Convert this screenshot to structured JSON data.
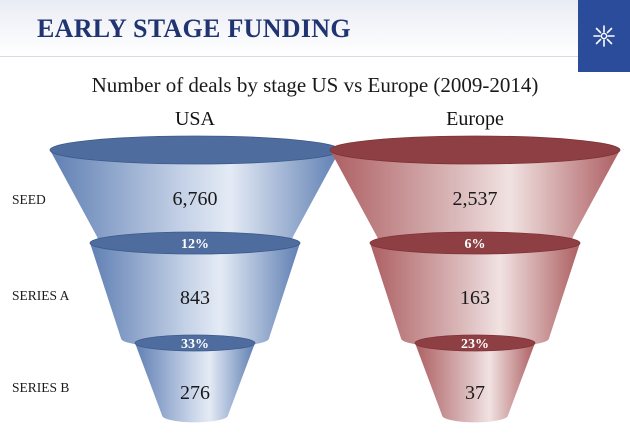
{
  "header": {
    "title": "EARLY STAGE FUNDING"
  },
  "logo": {
    "icon": "snowflake-star-icon",
    "bg_color": "#2b4c9b"
  },
  "chart_data": {
    "type": "funnel",
    "title": "Number of deals by stage US vs Europe (2009-2014)",
    "stages": [
      "SEED",
      "SERIES A",
      "SERIES B"
    ],
    "series": [
      {
        "name": "USA",
        "color": "#5576a8",
        "values": [
          6760,
          843,
          276
        ],
        "value_labels": [
          "6,760",
          "843",
          "276"
        ],
        "conversion_labels": [
          "12%",
          "33%"
        ]
      },
      {
        "name": "Europe",
        "color": "#a9575a",
        "values": [
          2537,
          163,
          37
        ],
        "value_labels": [
          "2,537",
          "163",
          "37"
        ],
        "conversion_labels": [
          "6%",
          "23%"
        ]
      }
    ]
  }
}
